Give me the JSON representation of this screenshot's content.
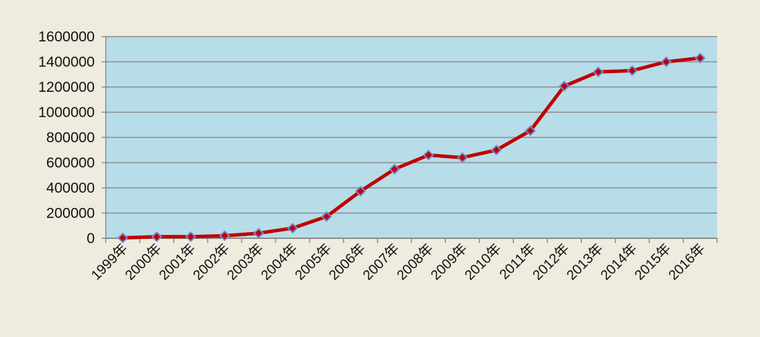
{
  "colors": {
    "background": "#efebdf",
    "plot_area": "#b7dde8",
    "gridline": "#8c8c8c",
    "axis": "#8c8c8c",
    "line": "#c00000",
    "marker_fill": "#c00000",
    "marker_stroke": "#6f8fd8"
  },
  "chart_data": {
    "type": "line",
    "title": "",
    "xlabel": "",
    "ylabel": "",
    "ylim": [
      0,
      1600000
    ],
    "y_ticks": [
      "0",
      "200000",
      "400000",
      "600000",
      "800000",
      "1000000",
      "1200000",
      "1400000",
      "1600000"
    ],
    "categories": [
      "1999年",
      "2000年",
      "2001年",
      "2002年",
      "2003年",
      "2004年",
      "2005年",
      "2006年",
      "2007年",
      "2008年",
      "2009年",
      "2010年",
      "2011年",
      "2012年",
      "2013年",
      "2014年",
      "2015年",
      "2016年"
    ],
    "series": [
      {
        "values": [
          3000,
          12000,
          12000,
          20000,
          40000,
          80000,
          172000,
          373000,
          548000,
          660000,
          640000,
          700000,
          853000,
          1207000,
          1320000,
          1330000,
          1400000,
          1430000
        ]
      }
    ],
    "grid": true,
    "legend": "none",
    "marker": "diamond"
  }
}
